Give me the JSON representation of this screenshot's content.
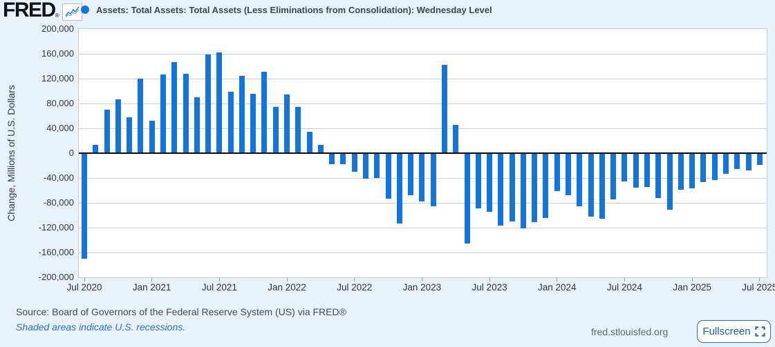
{
  "header": {
    "logo_text": "FRED",
    "logo_registered": "®",
    "series_title": "Assets: Total Assets: Total Assets (Less Eliminations from Consolidation): Wednesday Level"
  },
  "colors": {
    "background": "#e9f1f8",
    "bar": "#1574dc",
    "legend_dot": "#1574dc",
    "gridline": "#cfcfcf",
    "zero_line": "#0b0b0b",
    "link_blue": "#2a6fbf",
    "button_blue": "#2b6cb0"
  },
  "chart_data": {
    "type": "bar",
    "title": "Assets: Total Assets: Total Assets (Less Eliminations from Consolidation): Wednesday Level",
    "xlabel": "",
    "ylabel": "Change, Millions of U.S. Dollars",
    "ylim": [
      -200000,
      200000
    ],
    "y_tick_step": 40000,
    "y_tick_labels": [
      "200,000",
      "160,000",
      "120,000",
      "80,000",
      "40,000",
      "0",
      "-40,000",
      "-80,000",
      "-120,000",
      "-160,000",
      "-200,000"
    ],
    "grid": true,
    "legend_position": "top",
    "x": [
      "2020-07",
      "2020-08",
      "2020-09",
      "2020-10",
      "2020-11",
      "2020-12",
      "2021-01",
      "2021-02",
      "2021-03",
      "2021-04",
      "2021-05",
      "2021-06",
      "2021-07",
      "2021-08",
      "2021-09",
      "2021-10",
      "2021-11",
      "2021-12",
      "2022-01",
      "2022-02",
      "2022-03",
      "2022-04",
      "2022-05",
      "2022-06",
      "2022-07",
      "2022-08",
      "2022-09",
      "2022-10",
      "2022-11",
      "2022-12",
      "2023-01",
      "2023-02",
      "2023-03",
      "2023-04",
      "2023-05",
      "2023-06",
      "2023-07",
      "2023-08",
      "2023-09",
      "2023-10",
      "2023-11",
      "2023-12",
      "2024-01",
      "2024-02",
      "2024-03",
      "2024-04",
      "2024-05",
      "2024-06",
      "2024-07",
      "2024-08",
      "2024-09",
      "2024-10",
      "2024-11",
      "2024-12",
      "2025-01",
      "2025-02",
      "2025-03",
      "2025-04",
      "2025-05",
      "2025-06",
      "2025-07"
    ],
    "values": [
      -170000,
      13000,
      70000,
      87000,
      58000,
      120000,
      52000,
      127000,
      147000,
      128000,
      90000,
      159000,
      162000,
      99000,
      125000,
      96000,
      131000,
      74000,
      95000,
      75000,
      34000,
      13000,
      -18000,
      -18000,
      -30000,
      -41000,
      -40000,
      -73000,
      -113000,
      -68000,
      -78000,
      -86000,
      142000,
      46000,
      -145000,
      -89000,
      -94000,
      -117000,
      -110000,
      -121000,
      -111000,
      -104000,
      -61000,
      -68000,
      -86000,
      -102000,
      -105000,
      -74000,
      -45000,
      -56000,
      -54000,
      -72000,
      -91000,
      -59000,
      -57000,
      -47000,
      -43000,
      -33000,
      -26000,
      -28000,
      -19000
    ],
    "x_tick_labels": [
      "Jul 2020",
      "Jan 2021",
      "Jul 2021",
      "Jan 2022",
      "Jul 2022",
      "Jan 2023",
      "Jul 2023",
      "Jan 2024",
      "Jul 2024",
      "Jan 2025",
      "Jul 2025"
    ],
    "x_tick_indices": [
      0,
      6,
      12,
      18,
      24,
      30,
      36,
      42,
      48,
      54,
      60
    ]
  },
  "footer": {
    "source": "Source: Board of Governors of the Federal Reserve System (US) via FRED®",
    "recession_note": "Shaded areas indicate U.S. recessions.",
    "site": "fred.stlouisfed.org",
    "fullscreen_label": "Fullscreen"
  }
}
